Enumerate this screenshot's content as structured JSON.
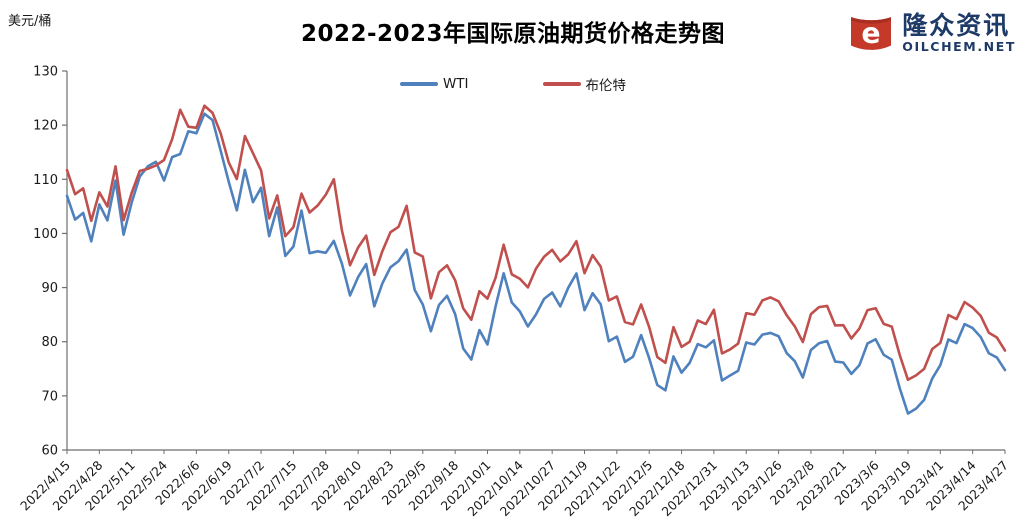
{
  "page": {
    "unit_label": "美元/桶"
  },
  "logo": {
    "brand_cn": "隆众资讯",
    "brand_en": "OILCHEM.NET",
    "icon": "oilchem-barrel-e-icon",
    "icon_color": "#C5392B",
    "text_color": "#1E3A67"
  },
  "chart_data": {
    "type": "line",
    "title": "2022-2023年国际原油期货价格走势图",
    "ylabel": "美元/桶",
    "xlabel": "",
    "ylim": [
      60,
      130
    ],
    "ytick_step": 10,
    "yticks": [
      60,
      70,
      80,
      90,
      100,
      110,
      120,
      130
    ],
    "grid": false,
    "legend_position": "top-center",
    "axis_color": "#6e6e6e",
    "tick_label_color": "#1a1a1a",
    "points_per_tick_interval": 4,
    "x_tick_labels": [
      "2022/4/15",
      "2022/4/28",
      "2022/5/11",
      "2022/5/24",
      "2022/6/6",
      "2022/6/19",
      "2022/7/2",
      "2022/7/15",
      "2022/7/28",
      "2022/8/10",
      "2022/8/23",
      "2022/9/5",
      "2022/9/18",
      "2022/10/1",
      "2022/10/14",
      "2022/10/27",
      "2022/11/9",
      "2022/11/22",
      "2022/12/5",
      "2022/12/18",
      "2022/12/31",
      "2023/1/13",
      "2023/1/26",
      "2023/2/8",
      "2023/2/21",
      "2023/3/6",
      "2023/3/19",
      "2023/4/1",
      "2023/4/14",
      "2023/4/27"
    ],
    "series": [
      {
        "name": "WTI",
        "color": "#4F81BD",
        "values": [
          106.95,
          102.56,
          103.79,
          98.54,
          105.36,
          102.41,
          109.77,
          99.76,
          105.71,
          110.49,
          112.4,
          113.23,
          109.77,
          114.09,
          114.67,
          118.87,
          118.5,
          122.11,
          120.93,
          115.31,
          109.56,
          104.27,
          111.76,
          105.76,
          108.43,
          99.5,
          104.79,
          95.84,
          97.59,
          104.22,
          96.35,
          96.7,
          96.42,
          98.62,
          94.42,
          88.54,
          91.93,
          94.34,
          86.53,
          90.77,
          93.74,
          94.89,
          97.01,
          89.55,
          86.87,
          81.94,
          86.79,
          88.48,
          85.11,
          78.74,
          76.71,
          82.15,
          79.49,
          86.52,
          92.64,
          87.27,
          85.61,
          82.82,
          85.05,
          87.91,
          89.08,
          86.53,
          90.0,
          92.61,
          85.83,
          88.96,
          86.92,
          80.08,
          80.95,
          76.28,
          77.24,
          81.22,
          76.93,
          72.01,
          71.02,
          77.28,
          74.29,
          76.09,
          79.56,
          78.96,
          80.26,
          72.84,
          73.77,
          74.63,
          79.86,
          79.48,
          81.31,
          81.62,
          81.01,
          77.9,
          76.41,
          73.39,
          78.47,
          79.72,
          80.14,
          76.34,
          76.16,
          74.05,
          75.68,
          79.68,
          80.46,
          77.58,
          76.68,
          71.33,
          66.74,
          67.64,
          69.26,
          73.2,
          75.67,
          80.42,
          79.74,
          83.26,
          82.52,
          80.86,
          77.87,
          77.07,
          74.76
        ]
      },
      {
        "name": "布伦特",
        "color": "#C0504D",
        "values": [
          111.7,
          107.25,
          108.33,
          102.32,
          107.59,
          104.97,
          112.39,
          102.46,
          107.51,
          111.55,
          111.93,
          112.55,
          113.56,
          117.4,
          122.84,
          119.72,
          119.51,
          123.58,
          122.27,
          118.51,
          113.12,
          110.05,
          117.98,
          114.81,
          111.63,
          102.77,
          107.02,
          99.49,
          101.16,
          107.35,
          103.86,
          105.15,
          107.14,
          110.01,
          100.54,
          94.12,
          97.4,
          99.6,
          92.34,
          96.72,
          100.22,
          101.22,
          105.09,
          96.49,
          95.74,
          88.0,
          92.84,
          94.1,
          91.35,
          86.15,
          84.06,
          89.32,
          87.96,
          91.8,
          97.92,
          92.45,
          91.63,
          90.03,
          93.5,
          95.69,
          96.96,
          94.83,
          96.16,
          98.57,
          92.65,
          95.99,
          93.86,
          87.62,
          88.36,
          83.63,
          83.19,
          86.88,
          82.68,
          77.17,
          76.1,
          82.7,
          79.04,
          79.99,
          83.92,
          83.26,
          85.91,
          77.84,
          78.57,
          79.65,
          85.28,
          84.98,
          87.63,
          88.19,
          87.47,
          84.9,
          82.84,
          79.94,
          85.09,
          86.39,
          86.61,
          83.0,
          83.05,
          80.6,
          82.45,
          85.83,
          86.18,
          83.29,
          82.78,
          77.45,
          72.97,
          73.79,
          74.99,
          78.65,
          79.77,
          84.93,
          84.18,
          87.33,
          86.31,
          84.77,
          81.66,
          80.77,
          78.37
        ]
      }
    ]
  }
}
